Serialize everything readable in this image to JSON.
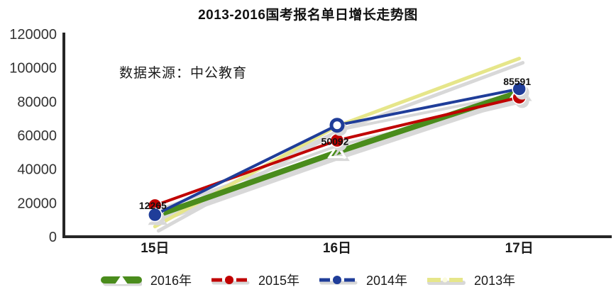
{
  "title": "2013-2016国考报名单日增长走势图",
  "annotation": "数据来源：中公教育",
  "chart_data": {
    "type": "line",
    "title": "2013-2016国考报名单日增长走势图",
    "annotation": "数据来源：中公教育",
    "categories": [
      "15日",
      "16日",
      "17日"
    ],
    "series": [
      {
        "name": "2016年",
        "color": "#4a8c1c",
        "values": [
          12265,
          50092,
          85591
        ],
        "point_labels": [
          "12265",
          "50092",
          "85591"
        ],
        "marker": "triangle",
        "line_width": 8
      },
      {
        "name": "2015年",
        "color": "#c00000",
        "values": [
          18500,
          57000,
          82500
        ],
        "marker": "circle",
        "line_width": 4
      },
      {
        "name": "2014年",
        "color": "#1f3d99",
        "values": [
          13000,
          66000,
          87500
        ],
        "marker": "circle",
        "hollow_points": [
          1
        ],
        "line_width": 4
      },
      {
        "name": "2013年",
        "color": "#e6e68a",
        "values": [
          6000,
          65500,
          105500
        ],
        "marker": "none",
        "line_width": 5
      }
    ],
    "ylim": [
      0,
      120000
    ],
    "ytick_step": 20000,
    "yticks": [
      "0",
      "20000",
      "40000",
      "60000",
      "80000",
      "100000",
      "120000"
    ],
    "xlabel": "",
    "ylabel": "",
    "grid": false,
    "legend_position": "bottom"
  },
  "colors": {
    "axis": "#262626",
    "text": "#1a1a1a",
    "shadow": "#d8d8d8",
    "background": "#ffffff",
    "marker_outline": "#ffffff",
    "legend_2013_dot": "#fbfbdc"
  }
}
